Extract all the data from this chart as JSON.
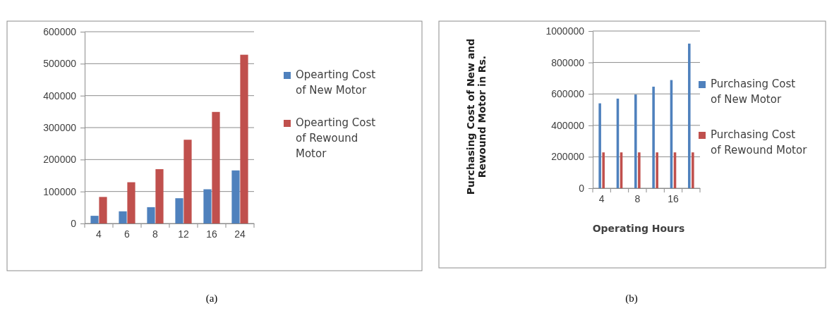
{
  "chart_data": [
    {
      "type": "bar",
      "categories": [
        "4",
        "6",
        "8",
        "12",
        "16",
        "24"
      ],
      "series": [
        {
          "name": "Opearting Cost of New Motor",
          "color": "#4f81bd",
          "values": [
            24000,
            38000,
            51000,
            79000,
            107000,
            166000
          ]
        },
        {
          "name": "Opearting Cost of Rewound Motor",
          "color": "#c0504d",
          "values": [
            83000,
            129000,
            170000,
            262000,
            349000,
            528000
          ]
        }
      ],
      "ylim": [
        0,
        600000
      ],
      "yticks": [
        0,
        100000,
        200000,
        300000,
        400000,
        500000,
        600000
      ],
      "grid": "y",
      "legend": "right",
      "annotations": [
        "(a)"
      ]
    },
    {
      "type": "bar",
      "categories": [
        "4",
        null,
        "8",
        null,
        "16",
        null
      ],
      "xlabel": "Operating Hours",
      "ylabel": "Purchasing Cost of New and Rewound Motor in Rs.",
      "series": [
        {
          "name": "Purchasing Cost of New Motor",
          "color": "#4f81bd",
          "values": [
            540000,
            570000,
            596000,
            646000,
            688000,
            920000
          ]
        },
        {
          "name": "Purchasing Cost of Rewound Motor",
          "color": "#c0504d",
          "values": [
            228000,
            228000,
            228000,
            228000,
            228000,
            228000
          ]
        }
      ],
      "ylim": [
        0,
        1000000
      ],
      "yticks": [
        0,
        200000,
        400000,
        600000,
        800000,
        1000000
      ],
      "grid": "y",
      "legend": "right",
      "annotations": [
        "(b)"
      ]
    }
  ]
}
